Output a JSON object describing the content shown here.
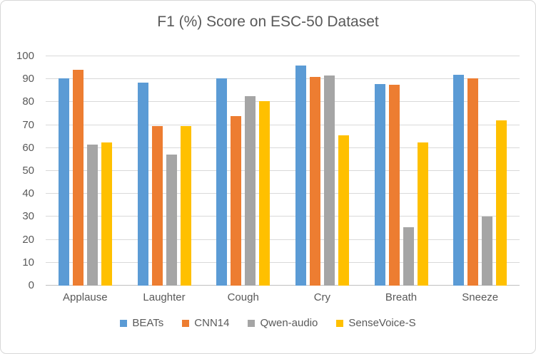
{
  "chart_data": {
    "type": "bar",
    "title": "F1 (%) Score on ESC-50 Dataset",
    "categories": [
      "Applause",
      "Laughter",
      "Cough",
      "Cry",
      "Breath",
      "Sneeze"
    ],
    "series": [
      {
        "name": "BEATs",
        "color": "#5B9BD5",
        "values": [
          90.5,
          88.5,
          90.5,
          96.0,
          88.0,
          92.0
        ]
      },
      {
        "name": "CNN14",
        "color": "#ED7D31",
        "values": [
          94.0,
          69.5,
          74.0,
          91.0,
          87.5,
          90.5
        ]
      },
      {
        "name": "Qwen-audio",
        "color": "#A5A5A5",
        "values": [
          61.5,
          57.0,
          82.5,
          91.5,
          25.5,
          30.0
        ]
      },
      {
        "name": "SenseVoice-S",
        "color": "#FFC000",
        "values": [
          62.5,
          69.5,
          80.5,
          65.5,
          62.5,
          72.0
        ]
      }
    ],
    "ylim": [
      0,
      100
    ],
    "yticks": [
      0,
      10,
      20,
      30,
      40,
      50,
      60,
      70,
      80,
      90,
      100
    ],
    "grid": true,
    "legend_position": "bottom",
    "xlabel": "",
    "ylabel": ""
  },
  "style_colors": {
    "text": "#595959",
    "gridline": "#D9D9D9",
    "axis_line": "#BFBFBF",
    "chart_border": "#D7D7D7",
    "background": "#FFFFFF"
  }
}
